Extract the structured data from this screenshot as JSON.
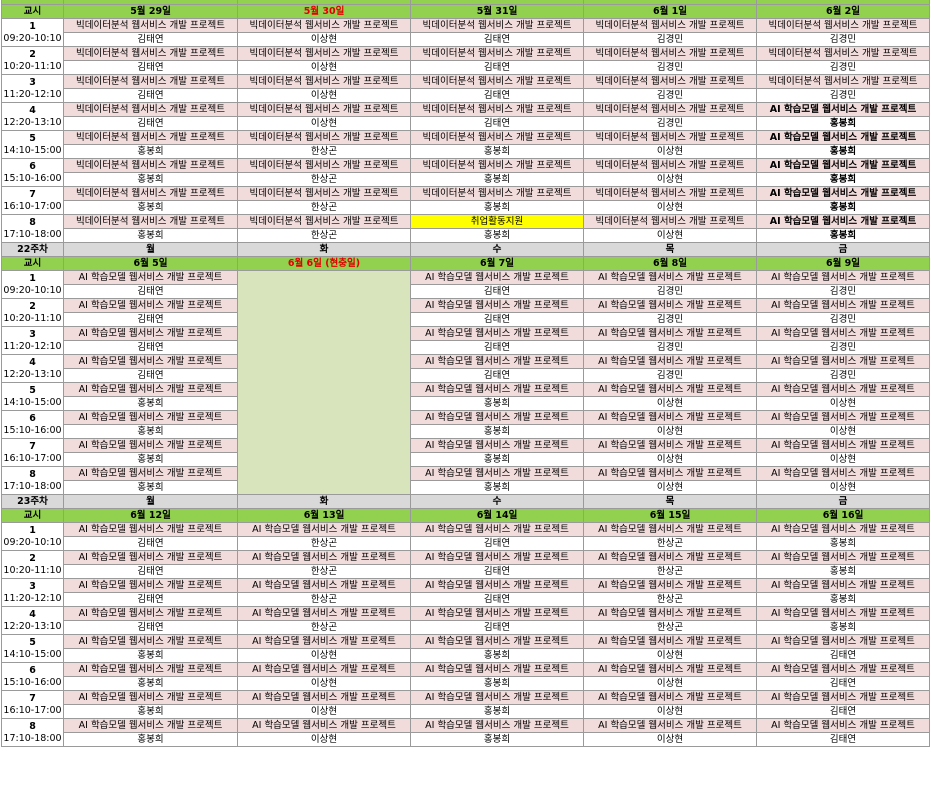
{
  "periods": [
    {
      "num": "1",
      "time": "09:20-10:10"
    },
    {
      "num": "2",
      "time": "10:20-11:10"
    },
    {
      "num": "3",
      "time": "11:20-12:10"
    },
    {
      "num": "4",
      "time": "12:20-13:10"
    },
    {
      "num": "5",
      "time": "14:10-15:00"
    },
    {
      "num": "6",
      "time": "15:10-16:00"
    },
    {
      "num": "7",
      "time": "16:10-17:00"
    },
    {
      "num": "8",
      "time": "17:10-18:00"
    }
  ],
  "weeks": [
    {
      "week_label": "",
      "days": [
        "",
        "",
        "",
        "",
        ""
      ],
      "header_label": "교시",
      "dates": [
        {
          "text": "5월 29일",
          "red": false
        },
        {
          "text": "5월 30일",
          "red": true
        },
        {
          "text": "5월 31일",
          "red": false
        },
        {
          "text": "6월 1일",
          "red": false
        },
        {
          "text": "6월 2일",
          "red": false
        }
      ],
      "rows": [
        [
          [
            "빅데이터분석 웹서비스 개발 프로젝트",
            "김태연"
          ],
          [
            "빅데이터분석 웹서비스 개발 프로젝트",
            "이상현"
          ],
          [
            "빅데이터분석 웹서비스 개발 프로젝트",
            "김태연"
          ],
          [
            "빅데이터분석 웹서비스 개발 프로젝트",
            "김경민"
          ],
          [
            "빅데이터분석 웹서비스 개발 프로젝트",
            "김경민"
          ]
        ],
        [
          [
            "빅데이터분석 웹서비스 개발 프로젝트",
            "김태연"
          ],
          [
            "빅데이터분석 웹서비스 개발 프로젝트",
            "이상현"
          ],
          [
            "빅데이터분석 웹서비스 개발 프로젝트",
            "김태연"
          ],
          [
            "빅데이터분석 웹서비스 개발 프로젝트",
            "김경민"
          ],
          [
            "빅데이터분석 웹서비스 개발 프로젝트",
            "김경민"
          ]
        ],
        [
          [
            "빅데이터분석 웹서비스 개발 프로젝트",
            "김태연"
          ],
          [
            "빅데이터분석 웹서비스 개발 프로젝트",
            "이상현"
          ],
          [
            "빅데이터분석 웹서비스 개발 프로젝트",
            "김태연"
          ],
          [
            "빅데이터분석 웹서비스 개발 프로젝트",
            "김경민"
          ],
          [
            "빅데이터분석 웹서비스 개발 프로젝트",
            "김경민"
          ]
        ],
        [
          [
            "빅데이터분석 웹서비스 개발 프로젝트",
            "김태연"
          ],
          [
            "빅데이터분석 웹서비스 개발 프로젝트",
            "이상현"
          ],
          [
            "빅데이터분석 웹서비스 개발 프로젝트",
            "김태연"
          ],
          [
            "빅데이터분석 웹서비스 개발 프로젝트",
            "김경민"
          ],
          [
            "AI 학습모델 웹서비스 개발 프로젝트",
            "홍봉희"
          ]
        ],
        [
          [
            "빅데이터분석 웹서비스 개발 프로젝트",
            "홍봉희"
          ],
          [
            "빅데이터분석 웹서비스 개발 프로젝트",
            "한상곤"
          ],
          [
            "빅데이터분석 웹서비스 개발 프로젝트",
            "홍봉희"
          ],
          [
            "빅데이터분석 웹서비스 개발 프로젝트",
            "이상현"
          ],
          [
            "AI 학습모델 웹서비스 개발 프로젝트",
            "홍봉희"
          ]
        ],
        [
          [
            "빅데이터분석 웹서비스 개발 프로젝트",
            "홍봉희"
          ],
          [
            "빅데이터분석 웹서비스 개발 프로젝트",
            "한상곤"
          ],
          [
            "빅데이터분석 웹서비스 개발 프로젝트",
            "홍봉희"
          ],
          [
            "빅데이터분석 웹서비스 개발 프로젝트",
            "이상현"
          ],
          [
            "AI 학습모델 웹서비스 개발 프로젝트",
            "홍봉희"
          ]
        ],
        [
          [
            "빅데이터분석 웹서비스 개발 프로젝트",
            "홍봉희"
          ],
          [
            "빅데이터분석 웹서비스 개발 프로젝트",
            "한상곤"
          ],
          [
            "빅데이터분석 웹서비스 개발 프로젝트",
            "홍봉희"
          ],
          [
            "빅데이터분석 웹서비스 개발 프로젝트",
            "이상현"
          ],
          [
            "AI 학습모델 웹서비스 개발 프로젝트",
            "홍봉희"
          ]
        ],
        [
          [
            "빅데이터분석 웹서비스 개발 프로젝트",
            "홍봉희"
          ],
          [
            "빅데이터분석 웹서비스 개발 프로젝트",
            "한상곤"
          ],
          [
            "취업활동지원",
            "홍봉희"
          ],
          [
            "빅데이터분석 웹서비스 개발 프로젝트",
            "이상현"
          ],
          [
            "AI 학습모델 웹서비스 개발 프로젝트",
            "홍봉희"
          ]
        ]
      ]
    },
    {
      "week_label": "22주차",
      "days": [
        "월",
        "화",
        "수",
        "목",
        "금"
      ],
      "header_label": "교시",
      "dates": [
        {
          "text": "6월 5일",
          "red": false
        },
        {
          "text": "6월 6일 (현충일)",
          "red": true
        },
        {
          "text": "6월 7일",
          "red": false
        },
        {
          "text": "6월 8일",
          "red": false
        },
        {
          "text": "6월 9일",
          "red": false
        }
      ],
      "rows": [
        [
          [
            "AI 학습모델 웹서비스 개발 프로젝트",
            "김태연"
          ],
          null,
          [
            "AI 학습모델 웹서비스 개발 프로젝트",
            "김태연"
          ],
          [
            "AI 학습모델 웹서비스 개발 프로젝트",
            "김경민"
          ],
          [
            "AI 학습모델 웹서비스 개발 프로젝트",
            "김경민"
          ]
        ],
        [
          [
            "AI 학습모델 웹서비스 개발 프로젝트",
            "김태연"
          ],
          null,
          [
            "AI 학습모델 웹서비스 개발 프로젝트",
            "김태연"
          ],
          [
            "AI 학습모델 웹서비스 개발 프로젝트",
            "김경민"
          ],
          [
            "AI 학습모델 웹서비스 개발 프로젝트",
            "김경민"
          ]
        ],
        [
          [
            "AI 학습모델 웹서비스 개발 프로젝트",
            "김태연"
          ],
          null,
          [
            "AI 학습모델 웹서비스 개발 프로젝트",
            "김태연"
          ],
          [
            "AI 학습모델 웹서비스 개발 프로젝트",
            "김경민"
          ],
          [
            "AI 학습모델 웹서비스 개발 프로젝트",
            "김경민"
          ]
        ],
        [
          [
            "AI 학습모델 웹서비스 개발 프로젝트",
            "김태연"
          ],
          null,
          [
            "AI 학습모델 웹서비스 개발 프로젝트",
            "김태연"
          ],
          [
            "AI 학습모델 웹서비스 개발 프로젝트",
            "김경민"
          ],
          [
            "AI 학습모델 웹서비스 개발 프로젝트",
            "김경민"
          ]
        ],
        [
          [
            "AI 학습모델 웹서비스 개발 프로젝트",
            "홍봉희"
          ],
          null,
          [
            "AI 학습모델 웹서비스 개발 프로젝트",
            "홍봉희"
          ],
          [
            "AI 학습모델 웹서비스 개발 프로젝트",
            "이상현"
          ],
          [
            "AI 학습모델 웹서비스 개발 프로젝트",
            "이상현"
          ]
        ],
        [
          [
            "AI 학습모델 웹서비스 개발 프로젝트",
            "홍봉희"
          ],
          null,
          [
            "AI 학습모델 웹서비스 개발 프로젝트",
            "홍봉희"
          ],
          [
            "AI 학습모델 웹서비스 개발 프로젝트",
            "이상현"
          ],
          [
            "AI 학습모델 웹서비스 개발 프로젝트",
            "이상현"
          ]
        ],
        [
          [
            "AI 학습모델 웹서비스 개발 프로젝트",
            "홍봉희"
          ],
          null,
          [
            "AI 학습모델 웹서비스 개발 프로젝트",
            "홍봉희"
          ],
          [
            "AI 학습모델 웹서비스 개발 프로젝트",
            "이상현"
          ],
          [
            "AI 학습모델 웹서비스 개발 프로젝트",
            "이상현"
          ]
        ],
        [
          [
            "AI 학습모델 웹서비스 개발 프로젝트",
            "홍봉희"
          ],
          null,
          [
            "AI 학습모델 웹서비스 개발 프로젝트",
            "홍봉희"
          ],
          [
            "AI 학습모델 웹서비스 개발 프로젝트",
            "이상현"
          ],
          [
            "AI 학습모델 웹서비스 개발 프로젝트",
            "이상현"
          ]
        ]
      ]
    },
    {
      "week_label": "23주차",
      "days": [
        "월",
        "화",
        "수",
        "목",
        "금"
      ],
      "header_label": "교시",
      "dates": [
        {
          "text": "6월 12일",
          "red": false
        },
        {
          "text": "6월 13일",
          "red": false
        },
        {
          "text": "6월 14일",
          "red": false
        },
        {
          "text": "6월 15일",
          "red": false
        },
        {
          "text": "6월 16일",
          "red": false
        }
      ],
      "rows": [
        [
          [
            "AI 학습모델 웹서비스 개발 프로젝트",
            "김태연"
          ],
          [
            "AI 학습모델 웹서비스 개발 프로젝트",
            "한상곤"
          ],
          [
            "AI 학습모델 웹서비스 개발 프로젝트",
            "김태연"
          ],
          [
            "AI 학습모델 웹서비스 개발 프로젝트",
            "한상곤"
          ],
          [
            "AI 학습모델 웹서비스 개발 프로젝트",
            "홍봉희"
          ]
        ],
        [
          [
            "AI 학습모델 웹서비스 개발 프로젝트",
            "김태연"
          ],
          [
            "AI 학습모델 웹서비스 개발 프로젝트",
            "한상곤"
          ],
          [
            "AI 학습모델 웹서비스 개발 프로젝트",
            "김태연"
          ],
          [
            "AI 학습모델 웹서비스 개발 프로젝트",
            "한상곤"
          ],
          [
            "AI 학습모델 웹서비스 개발 프로젝트",
            "홍봉희"
          ]
        ],
        [
          [
            "AI 학습모델 웹서비스 개발 프로젝트",
            "김태연"
          ],
          [
            "AI 학습모델 웹서비스 개발 프로젝트",
            "한상곤"
          ],
          [
            "AI 학습모델 웹서비스 개발 프로젝트",
            "김태연"
          ],
          [
            "AI 학습모델 웹서비스 개발 프로젝트",
            "한상곤"
          ],
          [
            "AI 학습모델 웹서비스 개발 프로젝트",
            "홍봉희"
          ]
        ],
        [
          [
            "AI 학습모델 웹서비스 개발 프로젝트",
            "김태연"
          ],
          [
            "AI 학습모델 웹서비스 개발 프로젝트",
            "한상곤"
          ],
          [
            "AI 학습모델 웹서비스 개발 프로젝트",
            "김태연"
          ],
          [
            "AI 학습모델 웹서비스 개발 프로젝트",
            "한상곤"
          ],
          [
            "AI 학습모델 웹서비스 개발 프로젝트",
            "홍봉희"
          ]
        ],
        [
          [
            "AI 학습모델 웹서비스 개발 프로젝트",
            "홍봉희"
          ],
          [
            "AI 학습모델 웹서비스 개발 프로젝트",
            "이상현"
          ],
          [
            "AI 학습모델 웹서비스 개발 프로젝트",
            "홍봉희"
          ],
          [
            "AI 학습모델 웹서비스 개발 프로젝트",
            "이상현"
          ],
          [
            "AI 학습모델 웹서비스 개발 프로젝트",
            "김태연"
          ]
        ],
        [
          [
            "AI 학습모델 웹서비스 개발 프로젝트",
            "홍봉희"
          ],
          [
            "AI 학습모델 웹서비스 개발 프로젝트",
            "이상현"
          ],
          [
            "AI 학습모델 웹서비스 개발 프로젝트",
            "홍봉희"
          ],
          [
            "AI 학습모델 웹서비스 개발 프로젝트",
            "이상현"
          ],
          [
            "AI 학습모델 웹서비스 개발 프로젝트",
            "김태연"
          ]
        ],
        [
          [
            "AI 학습모델 웹서비스 개발 프로젝트",
            "홍봉희"
          ],
          [
            "AI 학습모델 웹서비스 개발 프로젝트",
            "이상현"
          ],
          [
            "AI 학습모델 웹서비스 개발 프로젝트",
            "홍봉희"
          ],
          [
            "AI 학습모델 웹서비스 개발 프로젝트",
            "이상현"
          ],
          [
            "AI 학습모델 웹서비스 개발 프로젝트",
            "김태연"
          ]
        ],
        [
          [
            "AI 학습모델 웹서비스 개발 프로젝트",
            "홍봉희"
          ],
          [
            "AI 학습모델 웹서비스 개발 프로젝트",
            "이상현"
          ],
          [
            "AI 학습모델 웹서비스 개발 프로젝트",
            "홍봉희"
          ],
          [
            "AI 학습모델 웹서비스 개발 프로젝트",
            "이상현"
          ],
          [
            "AI 학습모델 웹서비스 개발 프로젝트",
            "김태연"
          ]
        ]
      ]
    }
  ]
}
